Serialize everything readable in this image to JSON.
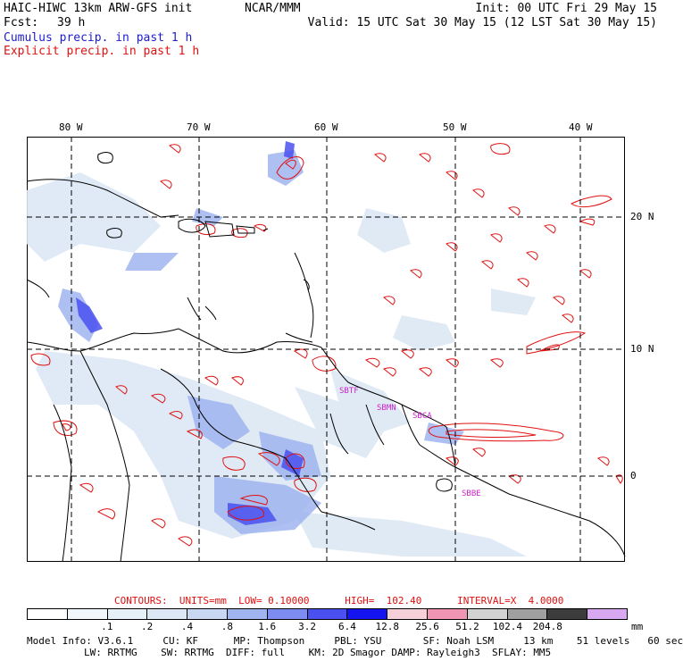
{
  "header": {
    "model_title": "HAIC-HIWC 13km ARW-GFS init",
    "org": "NCAR/MMM",
    "init": "Init: 00 UTC Fri 29 May 15",
    "fcst_label": "Fcst:",
    "fcst_value": "39 h",
    "valid": "Valid: 15 UTC Sat 30 May 15 (12 LST Sat 30 May 15)",
    "cumulus": "Cumulus precip. in past 1 h",
    "explicit": "Explicit precip. in past 1 h"
  },
  "map": {
    "lon_labels": [
      "80 W",
      "70 W",
      "60 W",
      "50 W",
      "40 W"
    ],
    "lat_labels": [
      "20 N",
      "10 N",
      "0"
    ],
    "stations": [
      "SBTF",
      "SBMN",
      "SBCA",
      "SBBE"
    ],
    "colors": {
      "land_line": "#000000",
      "grid": "#000000",
      "explicit": "#e01010",
      "cumulus": "#3c50f0",
      "station": "#cc22cc"
    }
  },
  "contours": {
    "label": "CONTOURS:  UNITS=mm  LOW= 0.10000      HIGH=  102.40      INTERVAL=X  4.0000"
  },
  "colorbar": {
    "colors": [
      "#ffffff",
      "#f2f7fb",
      "#e6f0f7",
      "#dce8f5",
      "#c8d8f2",
      "#a0b4f0",
      "#7c8cf0",
      "#4a50f0",
      "#1414f0",
      "#f5d0d8",
      "#f096b4",
      "#d2d2d2",
      "#a0a0a0",
      "#3c3c3c",
      "#d8a8f0"
    ],
    "ticks": [
      ".1",
      ".2",
      ".4",
      ".8",
      "1.6",
      "3.2",
      "6.4",
      "12.8",
      "25.6",
      "51.2",
      "102.4",
      "204.8"
    ],
    "unit": "mm"
  },
  "footer": {
    "line1": "Model Info: V3.6.1     CU: KF      MP: Thompson     PBL: YSU       SF: Noah LSM     13 km    51 levels   60 sec",
    "line2": "LW: RRTMG    SW: RRTMG  DIFF: full    KM: 2D Smagor DAMP: Rayleigh3  SFLAY: MM5"
  }
}
